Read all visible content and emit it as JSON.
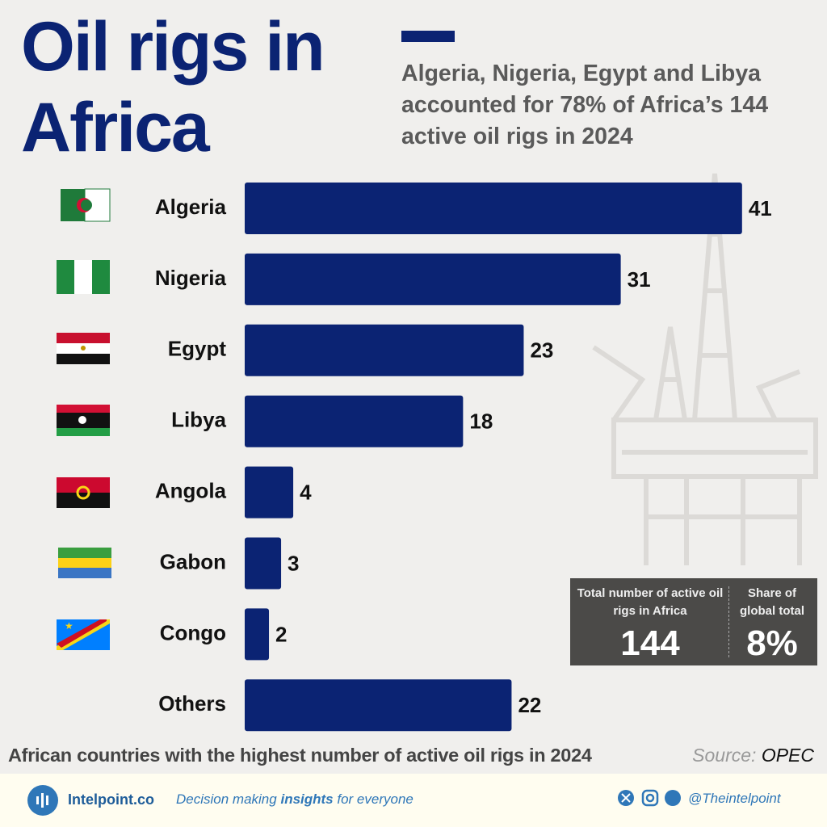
{
  "chart_data": {
    "type": "bar",
    "orientation": "horizontal",
    "title": "Oil rigs in Africa",
    "subtitle": "Algeria, Nigeria, Egypt and Libya accounted for 78% of Africa’s 144 active oil rigs in 2024",
    "categories": [
      "Algeria",
      "Nigeria",
      "Egypt",
      "Libya",
      "Angola",
      "Gabon",
      "Congo",
      "Others"
    ],
    "values": [
      41,
      31,
      23,
      18,
      4,
      3,
      2,
      22
    ],
    "color": "#0b2373",
    "caption": "African countries with the highest number of active oil rigs in 2024",
    "source_label": "Source:",
    "source": "OPEC"
  },
  "summary": [
    {
      "label": "Total number of active oil rigs in Africa",
      "value": "144"
    },
    {
      "label": "Share of global total",
      "value": "8%"
    }
  ],
  "footer": {
    "brand": "Intelpoint.co",
    "tagline_start": "Decision making",
    "tagline_bold": "insights",
    "tagline_end": "for everyone",
    "handle": "@Theintelpoint"
  }
}
